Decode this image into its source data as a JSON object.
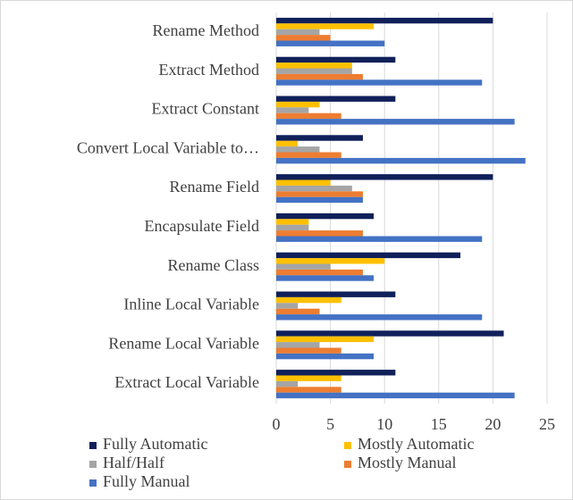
{
  "chart_data": {
    "type": "bar",
    "orientation": "horizontal",
    "categories": [
      "Rename Method",
      "Extract Method",
      "Extract Constant",
      "Convert Local Variable to…",
      "Rename Field",
      "Encapsulate Field",
      "Rename Class",
      "Inline Local Variable",
      "Rename Local Variable",
      "Extract Local Variable"
    ],
    "series": [
      {
        "name": "Fully Automatic",
        "color": "#10205a",
        "values": [
          20,
          11,
          11,
          8,
          20,
          9,
          17,
          11,
          21,
          11
        ]
      },
      {
        "name": "Mostly Automatic",
        "color": "#ffc000",
        "values": [
          9,
          7,
          4,
          2,
          5,
          3,
          10,
          6,
          9,
          6
        ]
      },
      {
        "name": "Half/Half",
        "color": "#a5a5a5",
        "values": [
          4,
          7,
          3,
          4,
          7,
          3,
          5,
          2,
          4,
          2
        ]
      },
      {
        "name": "Mostly Manual",
        "color": "#ed7d31",
        "values": [
          5,
          8,
          6,
          6,
          8,
          8,
          8,
          4,
          6,
          6
        ]
      },
      {
        "name": "Fully Manual",
        "color": "#4472c4",
        "values": [
          10,
          19,
          22,
          23,
          8,
          19,
          9,
          19,
          9,
          22
        ]
      }
    ],
    "xlim": [
      0,
      25
    ],
    "xticks": [
      0,
      5,
      10,
      15,
      20,
      25
    ],
    "grid": true,
    "legend": "bottom"
  }
}
